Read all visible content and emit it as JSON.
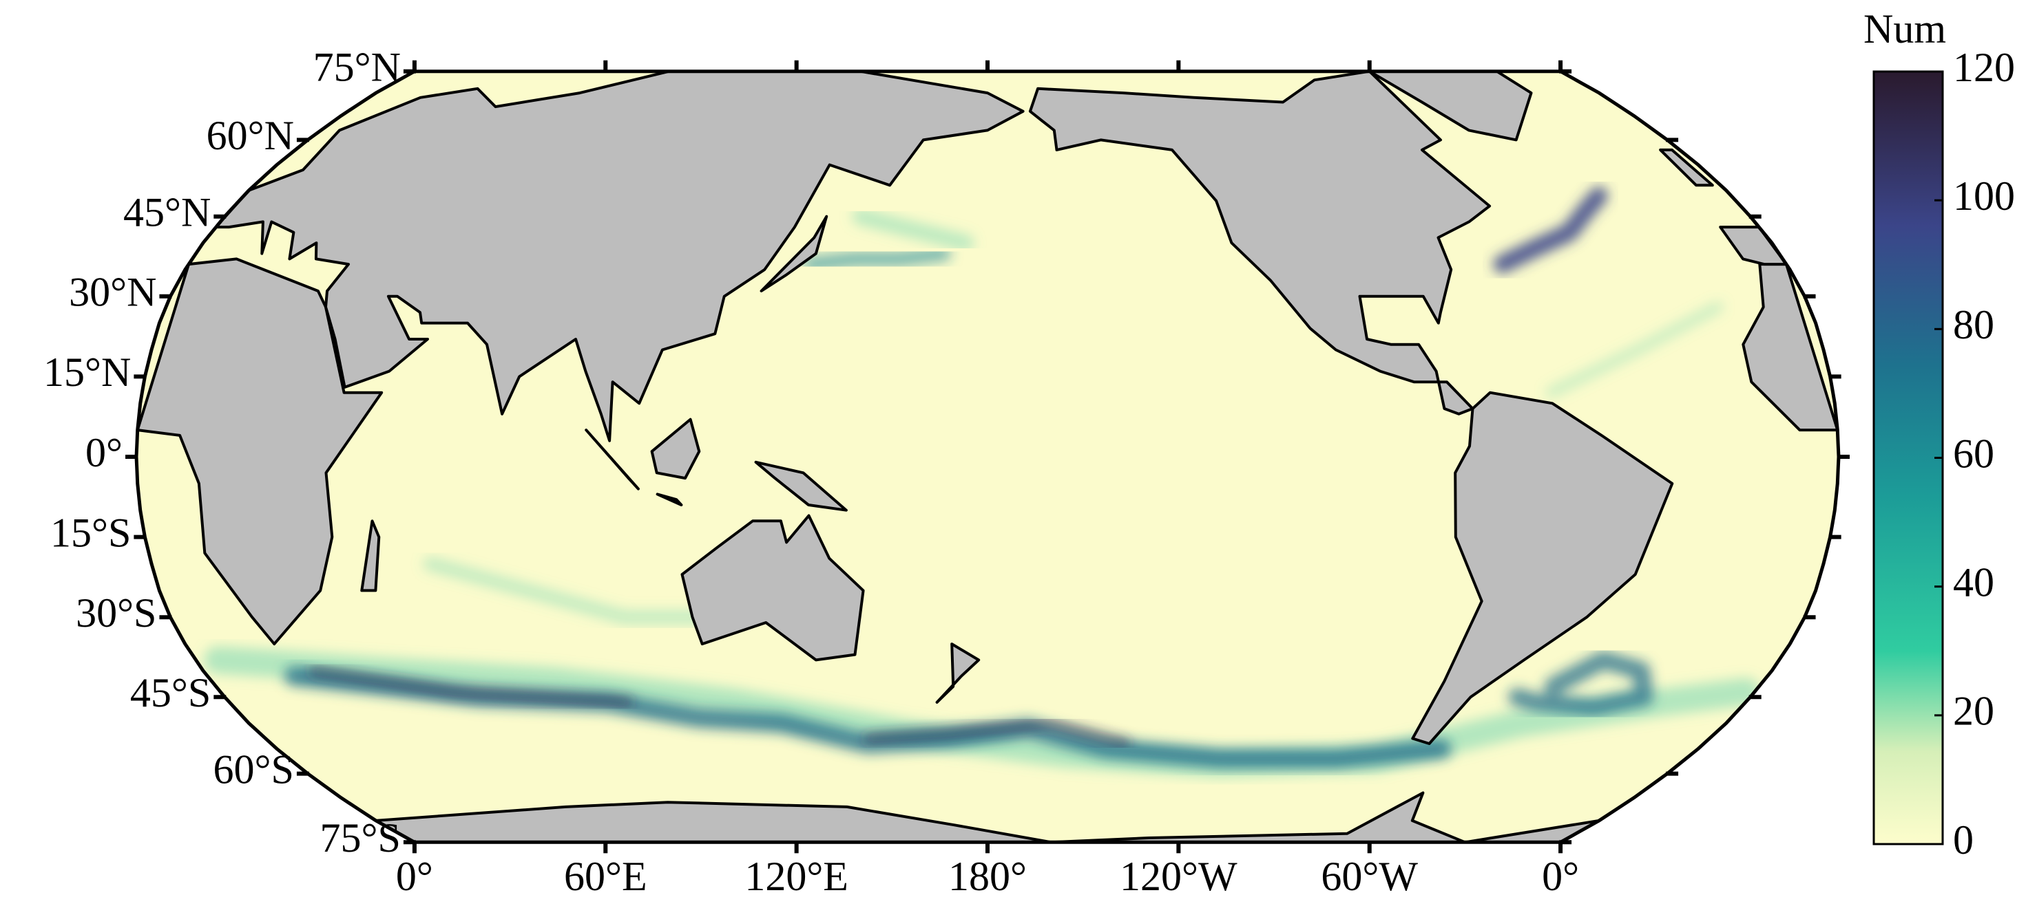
{
  "map": {
    "lat_ticks": [
      {
        "value": 75,
        "label": "75°N"
      },
      {
        "value": 60,
        "label": "60°N"
      },
      {
        "value": 45,
        "label": "45°N"
      },
      {
        "value": 30,
        "label": "30°N"
      },
      {
        "value": 15,
        "label": "15°N"
      },
      {
        "value": 0,
        "label": "0°"
      },
      {
        "value": -15,
        "label": "15°S"
      },
      {
        "value": -30,
        "label": "30°S"
      },
      {
        "value": -45,
        "label": "45°S"
      },
      {
        "value": -60,
        "label": "60°S"
      },
      {
        "value": -75,
        "label": "75°S"
      }
    ],
    "lon_ticks": [
      {
        "value": 0,
        "label": "0°"
      },
      {
        "value": 60,
        "label": "60°E"
      },
      {
        "value": 120,
        "label": "120°E"
      },
      {
        "value": 180,
        "label": "180°"
      },
      {
        "value": 240,
        "label": "120°W"
      },
      {
        "value": 300,
        "label": "60°W"
      },
      {
        "value": 360,
        "label": "0°"
      }
    ]
  },
  "colorbar": {
    "title": "Num",
    "lim": [
      0,
      120
    ],
    "ticks": [
      0,
      20,
      40,
      60,
      80,
      100,
      120
    ]
  }
}
